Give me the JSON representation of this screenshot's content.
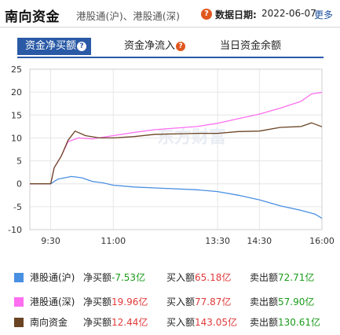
{
  "header": {
    "title": "南向资金",
    "subtitle": "港股通(沪)、港股通(深)",
    "help_icon": "question-icon",
    "date_label": "数据日期:",
    "date_value": "2022-06-07",
    "more_link": "更多"
  },
  "tabs": [
    {
      "label": "资金净买额",
      "active": true,
      "has_help": true
    },
    {
      "label": "资金净流入",
      "active": false,
      "has_help": true
    },
    {
      "label": "当日资金余额",
      "active": false,
      "has_help": false
    }
  ],
  "colors": {
    "accent": "#2a5aa6",
    "help_badge": "#e0571e",
    "sh": "#4a90e2",
    "sz": "#ff6ef0",
    "south": "#6b4423",
    "positive": "#e23a3a",
    "negative": "#1b9b1b",
    "grid": "#e6e6e6"
  },
  "chart_data": {
    "type": "line",
    "ylim": [
      -10,
      25
    ],
    "yticks": [
      -10,
      -5,
      0,
      5,
      10,
      15,
      20,
      25
    ],
    "xtick_labels": [
      "9:30",
      "11:00",
      "13:30",
      "14:30",
      "16:00"
    ],
    "grid": true,
    "watermark": "东方财富",
    "series": [
      {
        "name": "港股通(沪)",
        "color": "#4a90e2",
        "points": [
          [
            "9:00",
            0
          ],
          [
            "9:30",
            0
          ],
          [
            "9:40",
            1.0
          ],
          [
            "10:00",
            1.6
          ],
          [
            "10:15",
            1.3
          ],
          [
            "10:30",
            0.5
          ],
          [
            "10:45",
            0.2
          ],
          [
            "11:00",
            -0.3
          ],
          [
            "11:30",
            -0.7
          ],
          [
            "12:00",
            -0.9
          ],
          [
            "13:00",
            -1.3
          ],
          [
            "13:30",
            -1.7
          ],
          [
            "14:00",
            -2.5
          ],
          [
            "14:30",
            -3.5
          ],
          [
            "15:00",
            -4.8
          ],
          [
            "15:30",
            -5.8
          ],
          [
            "15:50",
            -6.6
          ],
          [
            "16:00",
            -7.53
          ]
        ]
      },
      {
        "name": "港股通(深)",
        "color": "#ff6ef0",
        "points": [
          [
            "9:00",
            0
          ],
          [
            "9:30",
            0
          ],
          [
            "9:35",
            3.5
          ],
          [
            "9:45",
            6.0
          ],
          [
            "9:55",
            9.2
          ],
          [
            "10:10",
            10.0
          ],
          [
            "10:30",
            9.8
          ],
          [
            "11:00",
            10.5
          ],
          [
            "11:30",
            11.2
          ],
          [
            "12:00",
            11.8
          ],
          [
            "13:00",
            12.5
          ],
          [
            "13:30",
            13.2
          ],
          [
            "14:00",
            14.2
          ],
          [
            "14:30",
            15.2
          ],
          [
            "15:00",
            16.5
          ],
          [
            "15:30",
            18.0
          ],
          [
            "15:45",
            19.6
          ],
          [
            "16:00",
            19.96
          ]
        ]
      },
      {
        "name": "南向资金",
        "color": "#6b4423",
        "points": [
          [
            "9:00",
            0
          ],
          [
            "9:30",
            0
          ],
          [
            "9:35",
            3.5
          ],
          [
            "9:45",
            6.0
          ],
          [
            "9:55",
            9.5
          ],
          [
            "10:05",
            11.5
          ],
          [
            "10:20",
            10.5
          ],
          [
            "10:40",
            10.0
          ],
          [
            "11:00",
            10.0
          ],
          [
            "11:30",
            10.3
          ],
          [
            "12:00",
            10.8
          ],
          [
            "13:00",
            11.0
          ],
          [
            "13:30",
            11.0
          ],
          [
            "14:00",
            11.4
          ],
          [
            "14:30",
            11.5
          ],
          [
            "15:00",
            12.3
          ],
          [
            "15:30",
            12.5
          ],
          [
            "15:45",
            13.3
          ],
          [
            "16:00",
            12.44
          ]
        ]
      }
    ]
  },
  "legend": [
    {
      "name": "港股通(沪)",
      "color": "#4a90e2",
      "net_label": "净买额",
      "net_value": "-7.53亿",
      "net_positive": false,
      "buy_label": "买入额",
      "buy_value": "65.18亿",
      "sell_label": "卖出额",
      "sell_value": "72.71亿"
    },
    {
      "name": "港股通(深)",
      "color": "#ff6ef0",
      "net_label": "净买额",
      "net_value": "19.96亿",
      "net_positive": true,
      "buy_label": "买入额",
      "buy_value": "77.87亿",
      "sell_label": "卖出额",
      "sell_value": "57.90亿"
    },
    {
      "name": "南向资金",
      "color": "#6b4423",
      "net_label": "净买额",
      "net_value": "12.44亿",
      "net_positive": true,
      "buy_label": "买入额",
      "buy_value": "143.05亿",
      "sell_label": "卖出额",
      "sell_value": "130.61亿"
    }
  ]
}
